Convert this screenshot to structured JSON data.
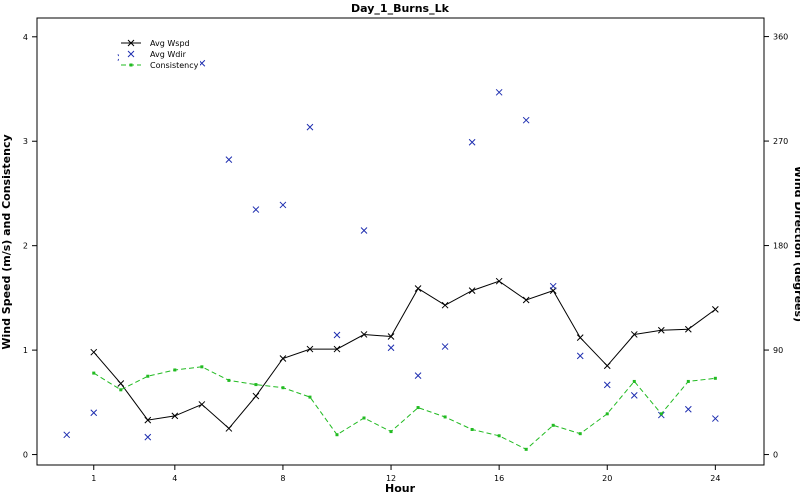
{
  "chart_data": {
    "type": "line",
    "title": "Day_1_Burns_Lk",
    "xlabel": "Hour",
    "ylabel_left": "Wind Speed (m/s) and Consistency",
    "ylabel_right": "Wind Direction (degrees)",
    "xlim": [
      -1.1,
      25.8
    ],
    "ylim_left": [
      -0.1,
      4.18
    ],
    "ylim_right": [
      -9,
      376
    ],
    "x_ticks": [
      1,
      4,
      8,
      12,
      16,
      20,
      24
    ],
    "y_left_ticks": [
      0,
      1,
      2,
      3,
      4
    ],
    "y_right_ticks": [
      0,
      90,
      180,
      270,
      360
    ],
    "legend_position": "top-left",
    "series": [
      {
        "name": "Avg Wspd",
        "axis": "left",
        "style": "line-x",
        "color": "#000000",
        "x": [
          1,
          2,
          3,
          4,
          5,
          6,
          7,
          8,
          9,
          10,
          11,
          12,
          13,
          14,
          15,
          16,
          17,
          18,
          19,
          20,
          21,
          22,
          23,
          24
        ],
        "y": [
          0.98,
          0.68,
          0.33,
          0.37,
          0.48,
          0.25,
          0.56,
          0.92,
          1.01,
          1.01,
          1.15,
          1.13,
          1.59,
          1.43,
          1.57,
          1.66,
          1.48,
          1.57,
          1.12,
          0.85,
          1.15,
          1.19,
          1.2,
          1.39
        ]
      },
      {
        "name": "Avg Wdir",
        "axis": "right",
        "style": "points-x",
        "color": "#1f2fb0",
        "x": [
          0,
          1,
          2,
          3,
          5,
          6,
          7,
          8,
          9,
          10,
          11,
          12,
          13,
          14,
          15,
          16,
          17,
          18,
          19,
          20,
          21,
          22,
          23,
          24
        ],
        "y": [
          17,
          36,
          342,
          15,
          337,
          254,
          211,
          215,
          282,
          103,
          193,
          92,
          68,
          93,
          269,
          312,
          288,
          145,
          85,
          60,
          51,
          34,
          39,
          31
        ]
      },
      {
        "name": "Consistency",
        "axis": "left",
        "style": "dashed-dots",
        "color": "#22bb22",
        "x": [
          1,
          2,
          3,
          4,
          5,
          6,
          7,
          8,
          9,
          10,
          11,
          12,
          13,
          14,
          15,
          16,
          17,
          18,
          19,
          20,
          21,
          22,
          23,
          24
        ],
        "y": [
          0.78,
          0.62,
          0.75,
          0.81,
          0.84,
          0.71,
          0.67,
          0.64,
          0.55,
          0.19,
          0.35,
          0.22,
          0.45,
          0.36,
          0.24,
          0.18,
          0.05,
          0.28,
          0.2,
          0.39,
          0.7,
          0.39,
          0.7,
          0.73
        ]
      }
    ]
  }
}
